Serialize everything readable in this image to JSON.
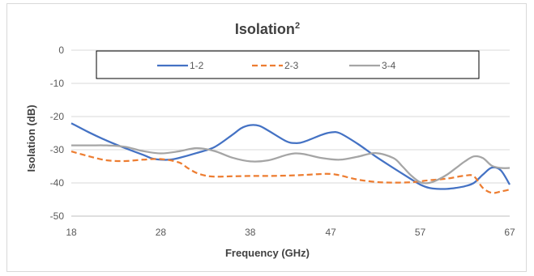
{
  "chart_data": {
    "type": "line",
    "title": "Isolation",
    "title_superscript": "2",
    "xlabel": "Frequency (GHz)",
    "ylabel": "Isolation (dB)",
    "xlim": [
      18,
      67
    ],
    "ylim": [
      -50,
      0
    ],
    "x_ticks": [
      "18",
      "28",
      "38",
      "47",
      "57",
      "67"
    ],
    "y_ticks": [
      "0",
      "-10",
      "-20",
      "-30",
      "-40",
      "-50"
    ],
    "grid": "horizontal",
    "legend_position": "top",
    "series": [
      {
        "name": "1-2",
        "color": "#4472C4",
        "dash": "solid",
        "x": [
          18,
          20,
          22,
          24,
          26,
          27,
          28,
          29,
          30,
          32,
          34,
          36,
          37,
          38,
          39,
          40,
          42,
          43,
          44,
          46,
          47,
          48,
          50,
          52,
          54,
          56,
          57,
          58,
          59,
          60,
          61,
          62,
          63,
          64,
          65,
          66,
          67
        ],
        "y": [
          -22,
          -24.8,
          -27.3,
          -29.5,
          -31.5,
          -32.6,
          -33,
          -33,
          -32.5,
          -31,
          -29.2,
          -25.5,
          -23.5,
          -22.6,
          -22.8,
          -24.2,
          -27.4,
          -28,
          -27.6,
          -25.5,
          -24.8,
          -25,
          -28.2,
          -32,
          -35.5,
          -38.9,
          -40.5,
          -41.5,
          -41.8,
          -41.8,
          -41.5,
          -41,
          -40,
          -37.5,
          -35.4,
          -36.2,
          -40.5
        ]
      },
      {
        "name": "2-3",
        "color": "#ED7D31",
        "dash": "dashed",
        "x": [
          18,
          20,
          22,
          24,
          26,
          28,
          30,
          31,
          32,
          33,
          34,
          36,
          38,
          40,
          42,
          44,
          46,
          47,
          48,
          50,
          52,
          54,
          56,
          57,
          58,
          60,
          62,
          63,
          64,
          65,
          66,
          67
        ],
        "y": [
          -30.5,
          -32,
          -33.2,
          -33.4,
          -33,
          -32.8,
          -33.8,
          -35.5,
          -37,
          -37.8,
          -38.1,
          -38,
          -37.9,
          -37.9,
          -37.8,
          -37.6,
          -37.3,
          -37.3,
          -37.7,
          -39,
          -39.7,
          -39.9,
          -39.8,
          -39.5,
          -39.2,
          -38.7,
          -37.8,
          -38,
          -41.5,
          -43,
          -42.6,
          -42
        ]
      },
      {
        "name": "3-4",
        "color": "#A5A5A5",
        "dash": "solid",
        "x": [
          18,
          20,
          22,
          24,
          26,
          28,
          30,
          32,
          34,
          36,
          38,
          40,
          42,
          43,
          44,
          46,
          48,
          50,
          52,
          54,
          55,
          56,
          57,
          58,
          59,
          60,
          61,
          62,
          63,
          64,
          65,
          66,
          67
        ],
        "y": [
          -28.7,
          -28.7,
          -28.7,
          -29.1,
          -30.4,
          -31.1,
          -30.5,
          -29.5,
          -30.4,
          -32.4,
          -33.5,
          -33.2,
          -31.6,
          -31.1,
          -31.3,
          -32.5,
          -33,
          -32.1,
          -31,
          -32.5,
          -35,
          -37.8,
          -39.8,
          -40,
          -39,
          -37.5,
          -35.5,
          -33.5,
          -32,
          -32.5,
          -34.8,
          -35.5,
          -35.5
        ]
      }
    ]
  }
}
